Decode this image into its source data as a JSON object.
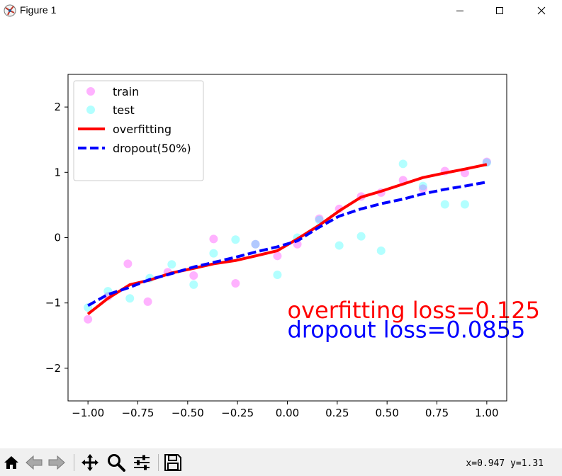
{
  "window": {
    "title": "Figure 1",
    "icons": [
      "matplotlib-icon",
      "minimize-icon",
      "maximize-icon",
      "close-icon"
    ]
  },
  "toolbar": {
    "tools": [
      "home-icon",
      "back-icon",
      "forward-icon",
      "pan-icon",
      "zoom-icon",
      "configure-subplots-icon",
      "save-icon"
    ],
    "coords_text": "x=0.947  y=1.31"
  },
  "colors": {
    "train": "#ff00ff",
    "test": "#00ffff",
    "overfitting": "#ff0000",
    "dropout": "#0000ff"
  },
  "chart_data": {
    "type": "scatter",
    "xlim": [
      -1.1,
      1.1
    ],
    "ylim": [
      -2.5,
      2.5
    ],
    "xticks": [
      -1.0,
      -0.75,
      -0.5,
      -0.25,
      0.0,
      0.25,
      0.5,
      0.75,
      1.0
    ],
    "xtick_labels": [
      "−1.00",
      "−0.75",
      "−0.50",
      "−0.25",
      "0.00",
      "0.25",
      "0.50",
      "0.75",
      "1.00"
    ],
    "yticks": [
      -2,
      -1,
      0,
      1,
      2
    ],
    "ytick_labels": [
      "−2",
      "−1",
      "0",
      "1",
      "2"
    ],
    "grid": false,
    "legend_position": "top-left",
    "legend": {
      "train": "train",
      "test": "test",
      "overfitting": "overfitting",
      "dropout": "dropout(50%)"
    },
    "series": [
      {
        "name": "train",
        "kind": "scatter",
        "color": "#ff00ff",
        "x": [
          -1.0,
          -0.9,
          -0.8,
          -0.7,
          -0.6,
          -0.47,
          -0.37,
          -0.26,
          -0.16,
          -0.05,
          0.05,
          0.16,
          0.26,
          0.37,
          0.47,
          0.58,
          0.68,
          0.79,
          0.89,
          1.0
        ],
        "y": [
          -1.25,
          -0.9,
          -0.4,
          -0.98,
          -0.53,
          -0.58,
          -0.02,
          -0.7,
          -0.1,
          -0.28,
          -0.1,
          0.29,
          0.44,
          0.63,
          0.69,
          0.88,
          0.75,
          1.02,
          0.99,
          1.16
        ]
      },
      {
        "name": "test",
        "kind": "scatter",
        "color": "#00ffff",
        "x": [
          -1.0,
          -0.9,
          -0.79,
          -0.69,
          -0.58,
          -0.47,
          -0.37,
          -0.26,
          -0.16,
          -0.05,
          0.05,
          0.16,
          0.26,
          0.37,
          0.47,
          0.58,
          0.68,
          0.79,
          0.89,
          1.0
        ],
        "y": [
          -1.07,
          -0.82,
          -0.93,
          -0.62,
          -0.41,
          -0.72,
          -0.24,
          -0.03,
          -0.1,
          -0.57,
          0.0,
          0.27,
          -0.12,
          0.02,
          -0.2,
          1.13,
          0.79,
          0.51,
          0.51,
          1.15
        ]
      },
      {
        "name": "overfitting",
        "kind": "line",
        "color": "#ff0000",
        "x": [
          -1.0,
          -0.9,
          -0.79,
          -0.69,
          -0.58,
          -0.47,
          -0.37,
          -0.26,
          -0.16,
          -0.05,
          0.05,
          0.16,
          0.26,
          0.37,
          0.47,
          0.58,
          0.68,
          0.79,
          0.89,
          1.0
        ],
        "y": [
          -1.17,
          -0.93,
          -0.72,
          -0.65,
          -0.54,
          -0.47,
          -0.4,
          -0.35,
          -0.28,
          -0.2,
          -0.02,
          0.19,
          0.41,
          0.62,
          0.71,
          0.82,
          0.92,
          0.99,
          1.05,
          1.12
        ]
      },
      {
        "name": "dropout(50%)",
        "kind": "line",
        "dash": true,
        "color": "#0000ff",
        "x": [
          -1.0,
          -0.9,
          -0.79,
          -0.69,
          -0.58,
          -0.47,
          -0.37,
          -0.26,
          -0.16,
          -0.05,
          0.05,
          0.16,
          0.26,
          0.37,
          0.47,
          0.58,
          0.68,
          0.79,
          0.89,
          1.0
        ],
        "y": [
          -1.04,
          -0.87,
          -0.76,
          -0.64,
          -0.55,
          -0.45,
          -0.38,
          -0.3,
          -0.22,
          -0.14,
          -0.05,
          0.16,
          0.33,
          0.44,
          0.52,
          0.59,
          0.67,
          0.74,
          0.79,
          0.85
        ]
      }
    ],
    "annotations": [
      {
        "text": "overfitting loss=0.125",
        "x": 0.0,
        "y": -1.1,
        "color": "#ff0000"
      },
      {
        "text": "dropout loss=0.0855",
        "x": 0.0,
        "y": -1.4,
        "color": "#0000ff"
      }
    ]
  }
}
